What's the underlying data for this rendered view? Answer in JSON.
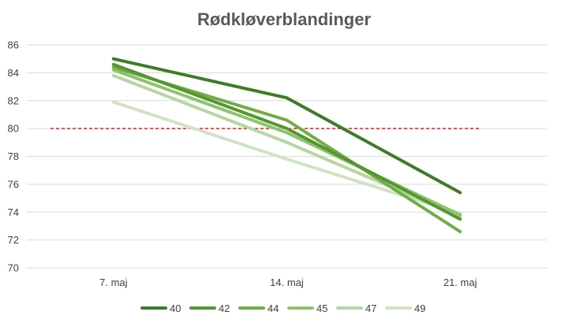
{
  "chart_data": {
    "type": "line",
    "title": "Rødkløverblandinger",
    "xlabel": "",
    "ylabel": "",
    "categories": [
      "7. maj",
      "14. maj",
      "21. maj"
    ],
    "ylim": [
      70,
      86
    ],
    "yticks": [
      70,
      72,
      74,
      76,
      78,
      80,
      82,
      84,
      86
    ],
    "grid": true,
    "legend_position": "bottom",
    "reference_line": {
      "value": 80,
      "style": "dashed",
      "color": "#C00000"
    },
    "series": [
      {
        "name": "40",
        "values": [
          85.0,
          82.2,
          75.4
        ],
        "color": "#3E7B27"
      },
      {
        "name": "42",
        "values": [
          84.6,
          80.0,
          73.5
        ],
        "color": "#54962F"
      },
      {
        "name": "44",
        "values": [
          84.4,
          80.6,
          72.6
        ],
        "color": "#70AD47"
      },
      {
        "name": "45",
        "values": [
          84.2,
          79.7,
          73.8
        ],
        "color": "#8CC46E"
      },
      {
        "name": "47",
        "values": [
          83.8,
          79.0,
          73.7
        ],
        "color": "#B5D6A2"
      },
      {
        "name": "49",
        "values": [
          81.9,
          77.8,
          73.9
        ],
        "color": "#CFE3C4"
      }
    ]
  }
}
